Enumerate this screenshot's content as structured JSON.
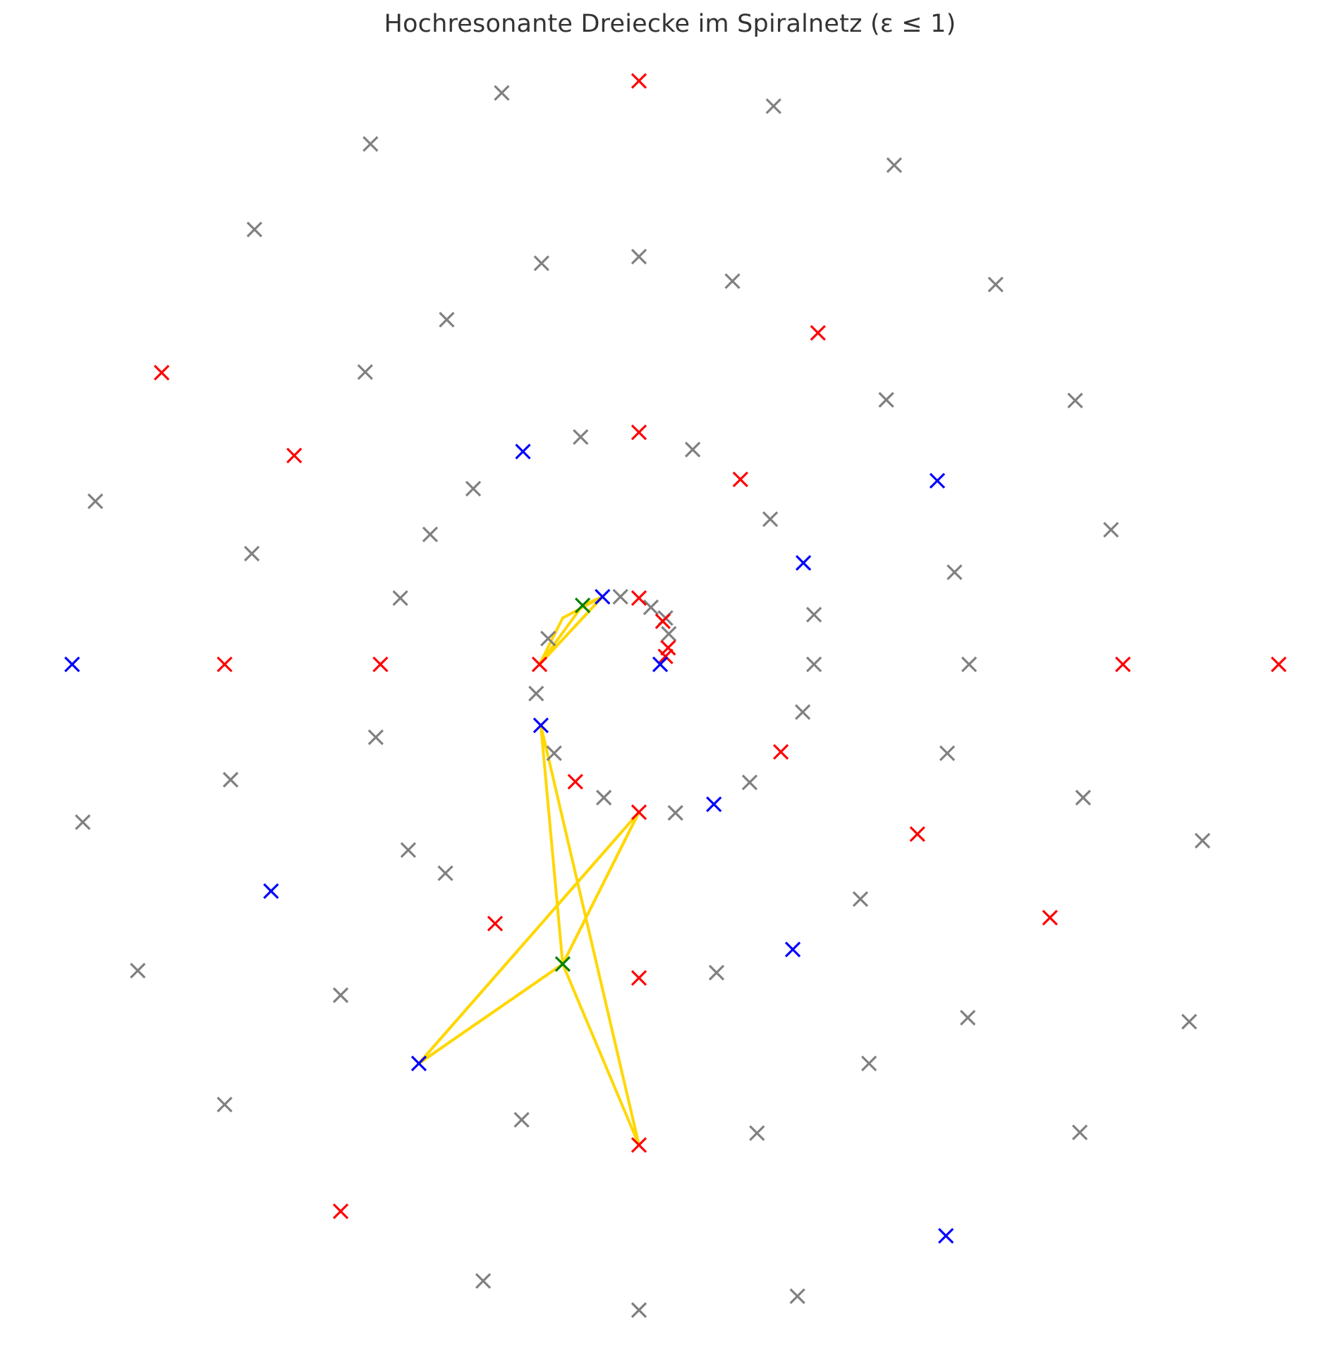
{
  "chart_data": {
    "type": "scatter",
    "title": "Hochresonante Dreiecke im Spiralnetz (ε ≤ 1)",
    "xlabel": "",
    "ylabel": "",
    "axes_visible": false,
    "grid": false,
    "legend": "none",
    "xlim": [
      -9.7,
      10.4
    ],
    "ylim": [
      -10.1,
      10.3
    ],
    "marker": "x",
    "colors": {
      "gray": "#808080",
      "red": "#ff0000",
      "blue": "#0000ff",
      "green": "#008000",
      "triangle": "#ffd700"
    },
    "series": [
      {
        "color": "gray",
        "points": [
          [
            -2.07,
            8.62
          ],
          [
            2.03,
            8.42
          ],
          [
            -4.05,
            7.85
          ],
          [
            3.85,
            7.53
          ],
          [
            -5.8,
            6.56
          ],
          [
            -1.47,
            6.05
          ],
          [
            0.0,
            6.15
          ],
          [
            1.41,
            5.78
          ],
          [
            5.38,
            5.73
          ],
          [
            -2.9,
            5.2
          ],
          [
            -4.13,
            4.41
          ],
          [
            3.73,
            3.99
          ],
          [
            6.58,
            3.98
          ],
          [
            -0.88,
            3.43
          ],
          [
            0.81,
            3.24
          ],
          [
            -2.5,
            2.65
          ],
          [
            -8.2,
            2.46
          ],
          [
            1.98,
            2.19
          ],
          [
            -3.15,
            1.96
          ],
          [
            7.12,
            2.03
          ],
          [
            -5.84,
            1.67
          ],
          [
            4.76,
            1.39
          ],
          [
            -3.6,
            1.0
          ],
          [
            2.64,
            0.75
          ],
          [
            -1.37,
            0.39
          ],
          [
            -0.28,
            1.02
          ],
          [
            0.18,
            0.86
          ],
          [
            0.4,
            0.7
          ],
          [
            0.45,
            0.46
          ],
          [
            -1.55,
            -0.44
          ],
          [
            2.64,
            0.0
          ],
          [
            4.98,
            0.0
          ],
          [
            -3.97,
            -1.1
          ],
          [
            2.47,
            -0.72
          ],
          [
            -1.28,
            -1.34
          ],
          [
            4.65,
            -1.34
          ],
          [
            -6.16,
            -1.74
          ],
          [
            1.67,
            -1.78
          ],
          [
            -0.53,
            -2.01
          ],
          [
            0.55,
            -2.24
          ],
          [
            -8.39,
            -2.38
          ],
          [
            -3.48,
            -2.8
          ],
          [
            6.7,
            -2.01
          ],
          [
            -2.92,
            -3.15
          ],
          [
            3.34,
            -3.54
          ],
          [
            -7.56,
            -4.62
          ],
          [
            -4.5,
            -4.99
          ],
          [
            1.17,
            -4.65
          ],
          [
            8.5,
            -2.66
          ],
          [
            4.96,
            -5.33
          ],
          [
            -6.25,
            -6.64
          ],
          [
            -1.77,
            -6.87
          ],
          [
            3.47,
            -6.02
          ],
          [
            1.78,
            -7.07
          ],
          [
            6.65,
            -7.06
          ],
          [
            8.3,
            -5.39
          ],
          [
            -2.35,
            -9.3
          ],
          [
            0.0,
            -9.74
          ],
          [
            2.39,
            -9.53
          ]
        ]
      },
      {
        "color": "red",
        "points": [
          [
            0.0,
            8.8
          ],
          [
            2.7,
            5.0
          ],
          [
            -7.2,
            4.4
          ],
          [
            -5.2,
            3.15
          ],
          [
            0.0,
            3.5
          ],
          [
            1.53,
            2.79
          ],
          [
            0.0,
            1.0
          ],
          [
            0.36,
            0.65
          ],
          [
            0.44,
            0.25
          ],
          [
            0.4,
            0.12
          ],
          [
            -1.5,
            0.0
          ],
          [
            -3.9,
            0.0
          ],
          [
            -6.25,
            0.0
          ],
          [
            7.3,
            0.0
          ],
          [
            9.65,
            0.0
          ],
          [
            -0.96,
            -1.77
          ],
          [
            2.14,
            -1.32
          ],
          [
            0.0,
            -2.23
          ],
          [
            4.2,
            -2.56
          ],
          [
            -2.17,
            -3.91
          ],
          [
            6.2,
            -3.82
          ],
          [
            0.0,
            -4.73
          ],
          [
            0.0,
            -7.25
          ],
          [
            -4.5,
            -8.25
          ]
        ]
      },
      {
        "color": "blue",
        "points": [
          [
            -1.75,
            3.21
          ],
          [
            4.5,
            2.77
          ],
          [
            2.48,
            1.53
          ],
          [
            -0.55,
            1.02
          ],
          [
            0.32,
            0.0
          ],
          [
            -8.55,
            0.0
          ],
          [
            -1.48,
            -0.92
          ],
          [
            1.13,
            -2.11
          ],
          [
            -5.55,
            -3.42
          ],
          [
            2.32,
            -4.3
          ],
          [
            -3.32,
            -6.02
          ],
          [
            4.63,
            -8.62
          ]
        ]
      },
      {
        "color": "green",
        "points": [
          [
            -0.85,
            0.89
          ],
          [
            -1.15,
            -4.52
          ]
        ]
      }
    ],
    "triangles": [
      [
        [
          -1.5,
          0.0
        ],
        [
          -0.85,
          0.89
        ],
        [
          -0.55,
          1.02
        ]
      ],
      [
        [
          -1.5,
          0.0
        ],
        [
          -1.15,
          0.7
        ],
        [
          -0.55,
          1.02
        ]
      ],
      [
        [
          -1.48,
          -0.92
        ],
        [
          -1.15,
          -4.52
        ],
        [
          0.0,
          -7.25
        ]
      ],
      [
        [
          -3.32,
          -6.02
        ],
        [
          -1.15,
          -4.52
        ],
        [
          0.0,
          -2.23
        ]
      ],
      [
        [
          -3.32,
          -6.02
        ],
        [
          0.0,
          -2.23
        ],
        [
          -1.15,
          -4.52
        ]
      ]
    ]
  }
}
